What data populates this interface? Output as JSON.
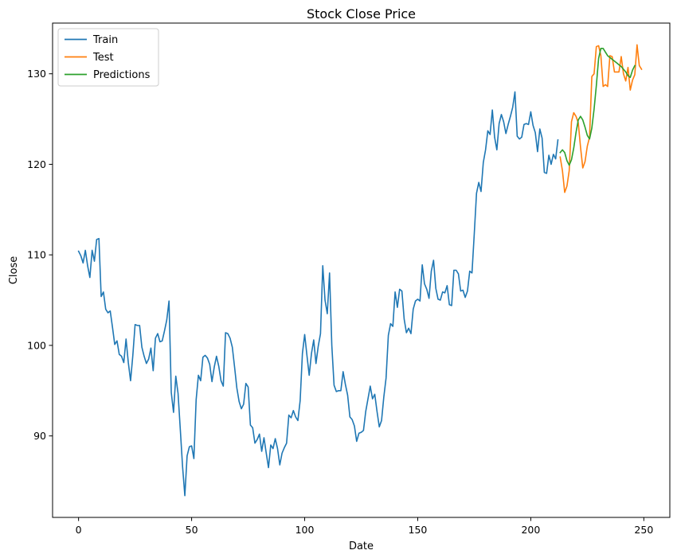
{
  "chart_data": {
    "type": "line",
    "title": "Stock Close Price",
    "xlabel": "Date",
    "ylabel": "Close",
    "xlim": [
      -11.5,
      261.5
    ],
    "ylim": [
      81.0,
      135.6
    ],
    "xticks": [
      0,
      50,
      100,
      150,
      200,
      250
    ],
    "yticks": [
      90,
      100,
      110,
      120,
      130
    ],
    "grid": false,
    "legend_position": "top-left",
    "series": [
      {
        "name": "Train",
        "color": "#1f77b4",
        "x_start": 0,
        "values": [
          110.4,
          109.9,
          109.1,
          110.5,
          108.8,
          107.5,
          110.5,
          109.3,
          111.7,
          111.8,
          105.4,
          105.9,
          104.0,
          103.6,
          103.8,
          102.0,
          100.1,
          100.5,
          99.0,
          98.8,
          98.1,
          100.7,
          98.1,
          96.1,
          98.9,
          102.3,
          102.2,
          102.2,
          99.8,
          98.8,
          98.0,
          98.5,
          99.7,
          97.2,
          100.8,
          101.3,
          100.4,
          100.5,
          101.6,
          102.8,
          104.9,
          94.8,
          92.6,
          96.6,
          94.7,
          90.7,
          86.6,
          83.4,
          87.8,
          88.8,
          88.9,
          87.5,
          94.0,
          96.7,
          96.1,
          98.7,
          98.9,
          98.6,
          97.9,
          96.0,
          97.6,
          98.8,
          97.7,
          96.1,
          95.5,
          101.4,
          101.3,
          100.8,
          99.8,
          97.6,
          95.3,
          93.8,
          93.0,
          93.5,
          95.8,
          95.4,
          91.2,
          90.9,
          89.2,
          89.6,
          90.2,
          88.3,
          89.8,
          88.1,
          86.5,
          89.0,
          88.6,
          89.7,
          88.6,
          86.8,
          88.1,
          88.7,
          89.2,
          92.3,
          92.0,
          92.8,
          92.1,
          91.7,
          93.9,
          99.1,
          101.2,
          98.9,
          96.7,
          99.1,
          100.6,
          98.0,
          99.9,
          101.3,
          108.8,
          105.0,
          103.5,
          108.0,
          100.0,
          95.6,
          94.9,
          95.0,
          95.0,
          97.1,
          95.7,
          94.5,
          92.1,
          91.8,
          91.1,
          89.4,
          90.3,
          90.4,
          90.6,
          92.7,
          94.1,
          95.5,
          94.1,
          94.6,
          92.7,
          91.0,
          91.7,
          94.3,
          96.4,
          101.1,
          102.4,
          102.1,
          105.9,
          104.2,
          106.2,
          106.0,
          102.9,
          101.4,
          101.9,
          101.3,
          104.0,
          104.9,
          105.1,
          104.9,
          108.9,
          106.8,
          106.2,
          105.2,
          108.2,
          109.4,
          106.3,
          105.1,
          105.0,
          105.9,
          105.8,
          106.6,
          104.5,
          104.4,
          108.3,
          108.3,
          107.9,
          106.0,
          106.1,
          105.3,
          106.0,
          108.2,
          108.0,
          112.3,
          116.8,
          118.0,
          117.0,
          120.2,
          121.6,
          123.7,
          123.3,
          126.0,
          123.0,
          121.6,
          124.5,
          125.5,
          124.7,
          123.4,
          124.4,
          125.3,
          126.3,
          128.0,
          123.1,
          122.8,
          123.0,
          124.4,
          124.5,
          124.4,
          125.8,
          124.3,
          123.5,
          121.4,
          123.9,
          122.9,
          119.1,
          119.0,
          121.0,
          120.0,
          121.1,
          120.6,
          122.7
        ]
      },
      {
        "name": "Test",
        "color": "#ff7f0e",
        "x_start": 213,
        "values": [
          120.8,
          119.3,
          116.9,
          117.6,
          119.3,
          124.7,
          125.7,
          125.3,
          124.6,
          121.9,
          119.6,
          120.3,
          122.0,
          123.0,
          129.7,
          130.0,
          133.0,
          133.1,
          132.0,
          128.6,
          128.8,
          128.6,
          132.0,
          131.9,
          130.2,
          130.2,
          130.2,
          131.9,
          130.0,
          129.2,
          130.7,
          128.2,
          129.3,
          129.9,
          133.2,
          130.9,
          130.5
        ]
      },
      {
        "name": "Predictions",
        "color": "#2ca02c",
        "x_start": 213,
        "values": [
          121.3,
          121.6,
          121.3,
          120.4,
          119.9,
          120.5,
          121.8,
          123.5,
          124.9,
          125.3,
          124.9,
          124.1,
          123.2,
          122.8,
          124.0,
          126.1,
          128.7,
          131.7,
          132.8,
          132.8,
          132.4,
          132.0,
          131.8,
          131.6,
          131.4,
          131.2,
          131.0,
          130.8,
          130.5,
          130.2,
          129.8,
          129.6,
          130.4,
          130.9
        ]
      }
    ]
  }
}
